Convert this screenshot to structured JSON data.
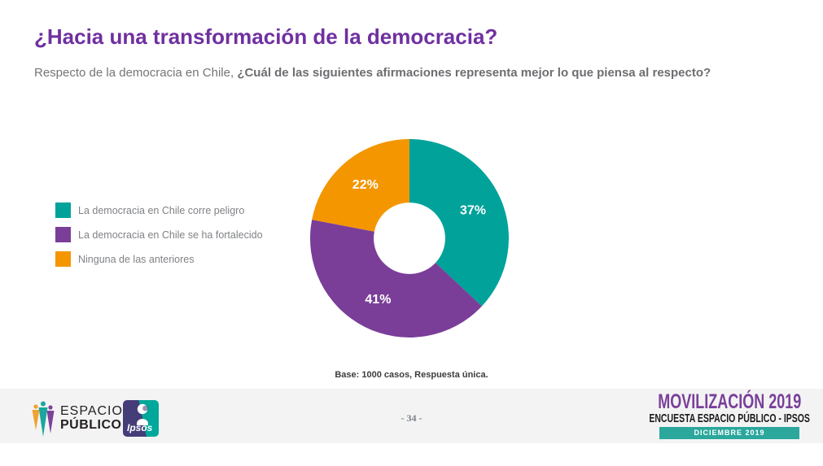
{
  "page": {
    "title": "¿Hacia una transformación de la democracia?",
    "subtitle_regular": "Respecto de la democracia en Chile, ",
    "subtitle_bold": "¿Cuál de las siguientes afirmaciones representa mejor lo que piensa al respecto?",
    "base_note": "Base: 1000 casos, Respuesta única.",
    "page_number": "- 34 -"
  },
  "chart_data": {
    "type": "pie",
    "subtype": "donut",
    "title": "¿Hacia una transformación de la democracia?",
    "categories": [
      "La democracia en Chile corre peligro",
      "La democracia en Chile se ha fortalecido",
      "Ninguna de las anteriores"
    ],
    "values": [
      37,
      41,
      22
    ],
    "labels": [
      "37%",
      "41%",
      "22%"
    ],
    "unit": "%",
    "colors": [
      "#00A29A",
      "#7A3E98",
      "#F49600"
    ],
    "start_angle_deg": 0,
    "direction": "clockwise",
    "inner_radius_ratio": 0.36,
    "legend_position": "left",
    "data_label_color": "#FFFFFF",
    "base_note": "Base: 1000 casos, Respuesta única."
  },
  "footer": {
    "espacio_logo": {
      "line1": "ESPACIO",
      "line2": "PÚBLICO"
    },
    "espacio_colors": [
      "#F0A22E",
      "#1AA79E",
      "#7C4299"
    ],
    "ipsos_label": "Ipsos",
    "title": "MOVILIZACIÓN 2019",
    "title_color": "#7A3F98",
    "subtitle": "ENCUESTA ESPACIO PÚBLICO - IPSOS",
    "badge": "DICIEMBRE 2019",
    "badge_color": "#2BA79C",
    "bar_color": "#F3F3F4"
  },
  "colors": {
    "title": "#7030A0",
    "subtitle": "#757575",
    "legend_text": "#808285",
    "base_note": "#3C3C3B"
  }
}
